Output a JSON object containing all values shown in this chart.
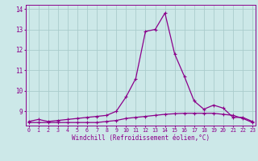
{
  "title": "",
  "xlabel": "Windchill (Refroidissement éolien,°C)",
  "background_color": "#cce8e8",
  "line_color": "#8b008b",
  "grid_color": "#aacccc",
  "hours": [
    0,
    1,
    2,
    3,
    4,
    5,
    6,
    7,
    8,
    9,
    10,
    11,
    12,
    13,
    14,
    15,
    16,
    17,
    18,
    19,
    20,
    21,
    22,
    23
  ],
  "temp": [
    8.5,
    8.6,
    8.5,
    8.55,
    8.6,
    8.65,
    8.7,
    8.75,
    8.8,
    9.0,
    9.7,
    10.6,
    12.9,
    13.0,
    13.8,
    11.8,
    10.7,
    9.5,
    9.1,
    9.3,
    9.15,
    8.7,
    8.7,
    8.5
  ],
  "windchill": [
    8.45,
    8.45,
    8.45,
    8.45,
    8.45,
    8.45,
    8.45,
    8.45,
    8.5,
    8.55,
    8.65,
    8.7,
    8.75,
    8.8,
    8.85,
    8.88,
    8.9,
    8.9,
    8.9,
    8.9,
    8.85,
    8.8,
    8.65,
    8.45
  ],
  "ylim": [
    8.3,
    14.2
  ],
  "yticks": [
    9,
    10,
    11,
    12,
    13,
    14
  ],
  "xlim": [
    -0.3,
    23.3
  ],
  "xticks": [
    0,
    1,
    2,
    3,
    4,
    5,
    6,
    7,
    8,
    9,
    10,
    11,
    12,
    13,
    14,
    15,
    16,
    17,
    18,
    19,
    20,
    21,
    22,
    23
  ]
}
